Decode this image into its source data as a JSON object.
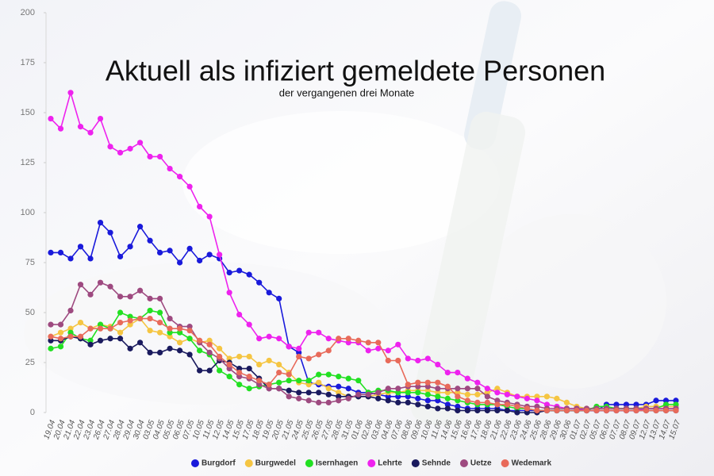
{
  "chart_data": {
    "type": "line",
    "title": "Aktuell als infiziert gemeldete Personen",
    "subtitle": "der vergangenen drei Monate",
    "categories": [
      "19.04",
      "20.04",
      "21.04",
      "22.04",
      "23.04",
      "26.04",
      "27.04",
      "28.04",
      "29.04",
      "30.04",
      "03.05",
      "04.05",
      "05.05",
      "06.05",
      "07.05",
      "10.05",
      "11.05",
      "12.05",
      "14.05",
      "15.05",
      "17.05",
      "18.05",
      "19.05",
      "20.05",
      "21.05",
      "24.05",
      "25.05",
      "26.05",
      "27.05",
      "28.05",
      "31.05",
      "01.06",
      "02.06",
      "03.06",
      "04.06",
      "07.06",
      "08.06",
      "09.06",
      "10.06",
      "11.06",
      "14.06",
      "15.06",
      "16.06",
      "17.06",
      "18.06",
      "21.06",
      "22.06",
      "23.06",
      "24.06",
      "25.06",
      "28.06",
      "29.06",
      "30.06",
      "01.07",
      "02.07",
      "05.07",
      "06.07",
      "07.07",
      "08.07",
      "09.07",
      "12.07",
      "13.07",
      "14.07",
      "15.07"
    ],
    "series": [
      {
        "name": "Burgdorf",
        "color": "#1a1adb",
        "values": [
          80,
          80,
          77,
          83,
          77,
          95,
          90,
          78,
          83,
          93,
          86,
          80,
          81,
          75,
          82,
          76,
          79,
          77,
          70,
          71,
          69,
          65,
          60,
          57,
          33,
          30,
          15,
          14,
          13,
          13,
          12,
          10,
          10,
          9,
          8,
          8,
          8,
          7,
          6,
          6,
          4,
          3,
          2,
          2,
          2,
          2,
          1,
          1,
          1,
          1,
          1,
          1,
          1,
          1,
          1,
          1,
          4,
          4,
          4,
          4,
          4,
          6,
          6,
          6
        ]
      },
      {
        "name": "Burgwedel",
        "color": "#f5c542",
        "values": [
          38,
          40,
          42,
          45,
          42,
          44,
          43,
          40,
          44,
          47,
          41,
          40,
          38,
          35,
          37,
          35,
          36,
          32,
          27,
          28,
          28,
          24,
          26,
          24,
          20,
          15,
          14,
          15,
          12,
          10,
          8,
          8,
          8,
          9,
          10,
          10,
          11,
          11,
          11,
          10,
          10,
          10,
          9,
          9,
          10,
          12,
          10,
          8,
          8,
          8,
          8,
          7,
          5,
          3,
          2,
          2,
          2,
          2,
          2,
          2,
          3,
          3,
          3,
          3
        ]
      },
      {
        "name": "Isernhagen",
        "color": "#22e022",
        "values": [
          32,
          33,
          40,
          37,
          36,
          44,
          42,
          50,
          48,
          47,
          51,
          50,
          40,
          40,
          37,
          31,
          29,
          21,
          18,
          14,
          12,
          13,
          14,
          15,
          16,
          16,
          16,
          19,
          19,
          18,
          17,
          16,
          10,
          11,
          11,
          10,
          10,
          10,
          9,
          8,
          7,
          6,
          5,
          4,
          4,
          4,
          3,
          2,
          2,
          1,
          1,
          1,
          1,
          1,
          1,
          3,
          3,
          2,
          2,
          2,
          2,
          2,
          4,
          4
        ]
      },
      {
        "name": "Lehrte",
        "color": "#ee22ee",
        "values": [
          147,
          142,
          160,
          143,
          140,
          147,
          133,
          130,
          132,
          135,
          128,
          128,
          122,
          118,
          113,
          103,
          98,
          79,
          60,
          49,
          44,
          37,
          38,
          37,
          33,
          32,
          40,
          40,
          37,
          36,
          35,
          35,
          31,
          32,
          31,
          34,
          27,
          26,
          27,
          24,
          20,
          20,
          17,
          15,
          12,
          10,
          9,
          8,
          7,
          6,
          4,
          3,
          2,
          2,
          1,
          1,
          1,
          1,
          1,
          1,
          2,
          2,
          2,
          2
        ]
      },
      {
        "name": "Sehnde",
        "color": "#1a1a5e",
        "values": [
          36,
          36,
          38,
          37,
          34,
          36,
          37,
          37,
          32,
          35,
          30,
          30,
          32,
          31,
          29,
          21,
          21,
          26,
          25,
          22,
          22,
          17,
          12,
          12,
          11,
          10,
          10,
          10,
          9,
          8,
          8,
          8,
          8,
          7,
          6,
          5,
          5,
          4,
          3,
          2,
          2,
          1,
          1,
          1,
          1,
          1,
          1,
          0,
          0,
          0,
          1,
          1,
          1,
          1,
          1,
          1,
          1,
          1,
          1,
          1,
          1,
          1,
          1,
          1
        ]
      },
      {
        "name": "Uetze",
        "color": "#9e4a80",
        "values": [
          44,
          44,
          51,
          64,
          59,
          65,
          63,
          58,
          58,
          61,
          57,
          57,
          47,
          43,
          43,
          35,
          30,
          27,
          22,
          18,
          17,
          14,
          12,
          12,
          8,
          7,
          6,
          5,
          5,
          6,
          7,
          9,
          9,
          10,
          12,
          12,
          13,
          13,
          13,
          12,
          12,
          12,
          12,
          12,
          8,
          6,
          5,
          4,
          3,
          3,
          2,
          2,
          2,
          2,
          2,
          2,
          2,
          2,
          2,
          2,
          2,
          2,
          2,
          2
        ]
      },
      {
        "name": "Wedemark",
        "color": "#e86a5a",
        "values": [
          38,
          37,
          38,
          38,
          42,
          42,
          42,
          45,
          46,
          47,
          47,
          45,
          42,
          42,
          41,
          36,
          34,
          28,
          24,
          20,
          18,
          16,
          14,
          20,
          19,
          28,
          27,
          29,
          31,
          37,
          37,
          36,
          35,
          35,
          26,
          26,
          14,
          15,
          15,
          15,
          13,
          8,
          6,
          5,
          5,
          4,
          4,
          3,
          2,
          1,
          1,
          1,
          1,
          1,
          1,
          1,
          1,
          1,
          1,
          1,
          1,
          1,
          1,
          1
        ]
      }
    ],
    "ylim": [
      0,
      200
    ],
    "yticks": [
      0,
      25,
      50,
      75,
      100,
      125,
      150,
      175,
      200
    ],
    "grid": false
  }
}
